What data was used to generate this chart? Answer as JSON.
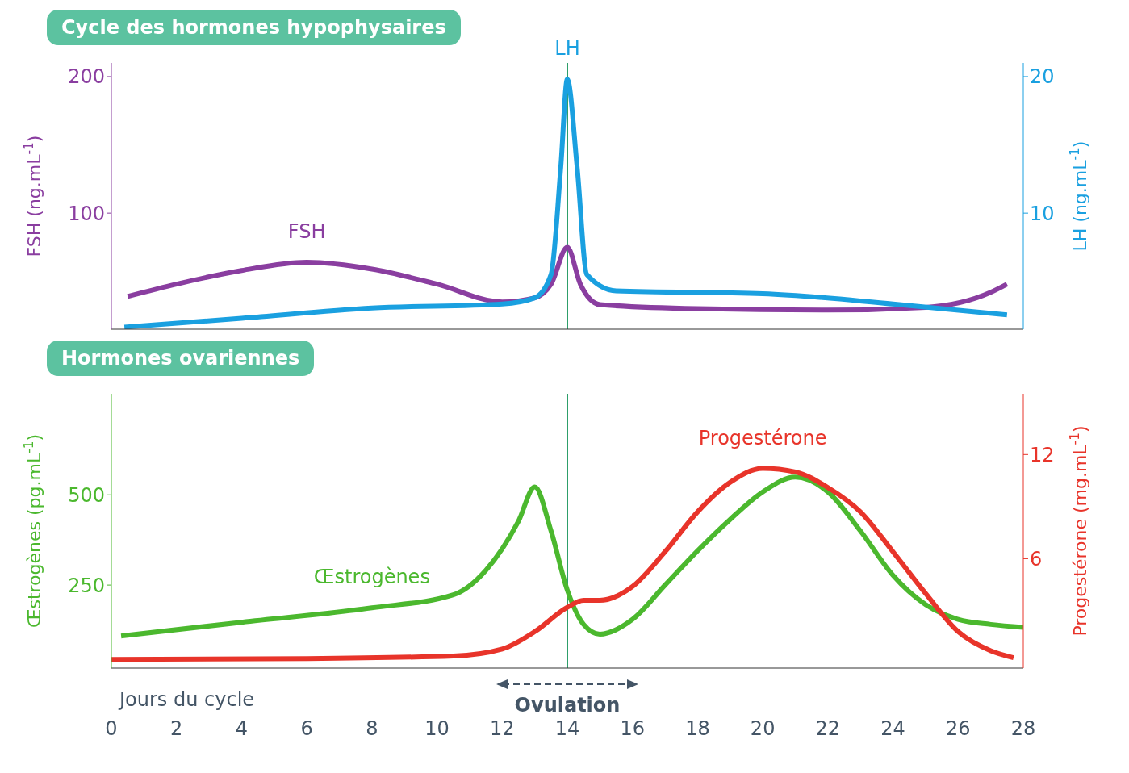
{
  "chart_data": [
    {
      "type": "line",
      "title": "Cycle des hormones hypophysaires",
      "ylabel": "FSH (ng.mL$^{-1}$)",
      "y2label": "LH (ng.mL$^{-1}$)",
      "xlim": [
        0,
        28
      ],
      "ylim": [
        15,
        210
      ],
      "yticks": [
        100,
        200
      ],
      "y2lim": [
        1.5,
        21
      ],
      "y2ticks": [
        10,
        20
      ],
      "tick_labels": "y",
      "marker": "none",
      "line_style": "solid",
      "series": [
        {
          "name": "FSH",
          "color": "#8a3ea0",
          "x": [
            0.5,
            2,
            4,
            6,
            8,
            10,
            12,
            13,
            13.5,
            14,
            14.4,
            15,
            18,
            22,
            25,
            27,
            27.5
          ],
          "values": [
            39,
            48,
            58,
            64,
            59,
            48,
            35,
            38,
            48,
            75,
            48,
            33,
            30,
            29,
            31,
            42,
            48
          ]
        },
        {
          "name": "LH",
          "color": "#1aa0e0",
          "axis": "y2",
          "x": [
            0.4,
            4,
            8,
            12,
            13,
            13.5,
            13.8,
            14,
            14.3,
            14.6,
            15.5,
            20,
            24,
            27.5
          ],
          "values": [
            1.65,
            2.3,
            3.05,
            3.35,
            3.8,
            5.5,
            13.4,
            19.8,
            13.4,
            5.5,
            4.3,
            4.1,
            3.35,
            2.55
          ]
        }
      ],
      "ref_lines": [
        {
          "axis": "x",
          "value": 14,
          "label": null,
          "color": "#2e9e6a"
        }
      ]
    },
    {
      "type": "line",
      "title": "Hormones ovariennes",
      "xlabel": "Jours du cycle",
      "ylabel": "Œstrogènes (pg.mL$^{-1}$)",
      "y2label": "Progestérone (mg.mL$^{-1}$)",
      "xlim": [
        0,
        28
      ],
      "xticks": [
        0,
        2,
        4,
        6,
        8,
        10,
        12,
        14,
        16,
        18,
        20,
        22,
        24,
        26,
        28
      ],
      "ylim": [
        20,
        780
      ],
      "yticks": [
        250,
        500
      ],
      "y2lim": [
        -0.3,
        15.5
      ],
      "y2ticks": [
        6,
        12
      ],
      "marker": "none",
      "line_style": "solid",
      "series": [
        {
          "name": "Œstrogènes",
          "color": "#4bb82e",
          "x": [
            0.3,
            4,
            8,
            10.5,
            11.5,
            12.5,
            13,
            13.5,
            14,
            14.5,
            15,
            16,
            17,
            18,
            19,
            20,
            21,
            22,
            23,
            24,
            25,
            26,
            27,
            28
          ],
          "values": [
            109,
            147,
            187,
            223,
            291,
            427,
            522,
            400,
            236,
            141,
            114,
            155,
            250,
            345,
            432,
            508,
            549,
            508,
            400,
            277,
            196,
            155,
            141,
            133
          ]
        },
        {
          "name": "Progestérone",
          "color": "#e8342a",
          "axis": "y2",
          "x": [
            0,
            6,
            10.5,
            12,
            13,
            14,
            14.5,
            15,
            16,
            17,
            18,
            19,
            20,
            21,
            22,
            23,
            24,
            25,
            26,
            27,
            27.7
          ],
          "values": [
            0.2,
            0.25,
            0.4,
            0.8,
            1.8,
            3.2,
            3.6,
            3.6,
            4.4,
            6.4,
            8.7,
            10.4,
            11.2,
            11.0,
            10.1,
            8.7,
            6.4,
            4.0,
            1.8,
            0.7,
            0.3
          ]
        }
      ],
      "ref_lines": [
        {
          "axis": "x",
          "value": 14,
          "label": "Ovulation",
          "color": "#2e9e6a"
        }
      ]
    }
  ]
}
